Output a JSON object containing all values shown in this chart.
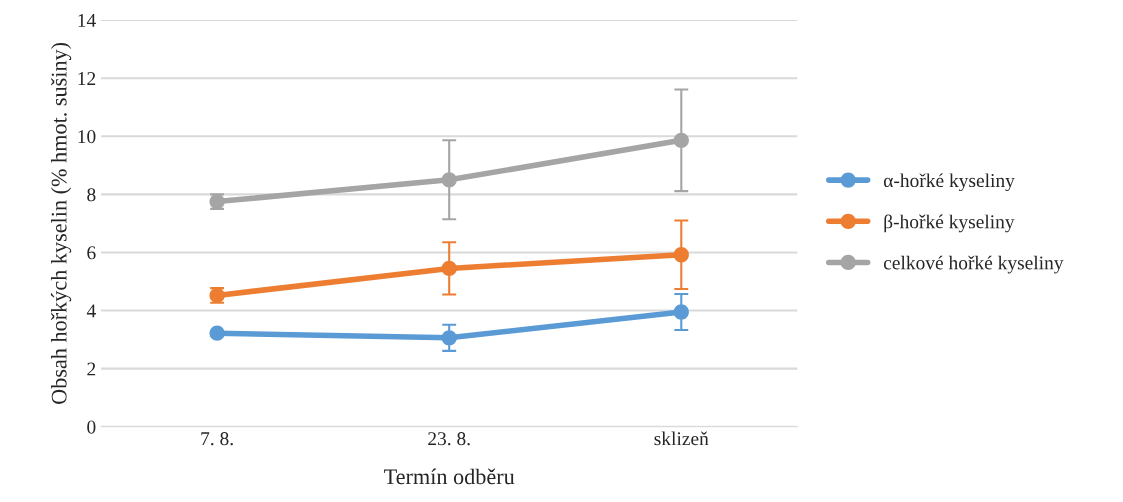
{
  "chart_data": {
    "type": "line",
    "xlabel": "Termín odběru",
    "ylabel": "Obsah hořkých kyselin (% hmot. sušiny)",
    "categories": [
      "7. 8.",
      "23. 8.",
      "sklizeň"
    ],
    "series": [
      {
        "name": "α-hořké kyseliny",
        "color": "#5b9bd5",
        "values": [
          3.22,
          3.06,
          3.95
        ],
        "errors": [
          null,
          0.45,
          0.62
        ]
      },
      {
        "name": "β-hořké kyseliny",
        "color": "#ed7d31",
        "values": [
          4.52,
          5.45,
          5.92
        ],
        "errors": [
          0.25,
          0.9,
          1.18
        ]
      },
      {
        "name": "celkové hořké kyseliny",
        "color": "#a5a5a5",
        "values": [
          7.75,
          8.5,
          9.86
        ],
        "errors": [
          0.25,
          1.36,
          1.75
        ]
      }
    ],
    "ylim": [
      0,
      14
    ],
    "yticks": [
      0,
      2,
      4,
      6,
      8,
      10,
      12,
      14
    ],
    "grid": "y",
    "legend": "right",
    "marker": "circle"
  }
}
